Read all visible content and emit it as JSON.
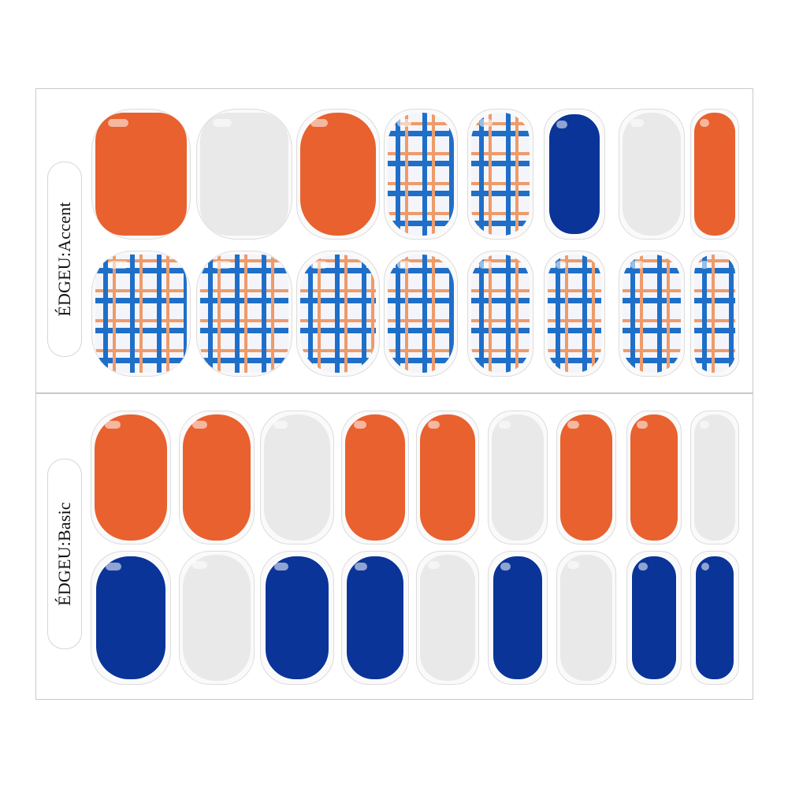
{
  "sheets": {
    "accent": {
      "label": "ÉDGEU:Accent"
    },
    "basic": {
      "label": "ÉDGEU:Basic"
    }
  },
  "colors": {
    "orange": "#e8612e",
    "white": "#e9e9ea",
    "navy": "#0b3499",
    "plaid_blue": "#1f6fc8",
    "plaid_orange": "#ee9b6a"
  },
  "nail_designs": {
    "accent_row1": [
      "orange",
      "white",
      "orange",
      "plaid",
      "plaid",
      "navy",
      "white",
      "orange"
    ],
    "accent_row2": [
      "plaid",
      "plaid",
      "plaid",
      "plaid",
      "plaid",
      "plaid",
      "plaid",
      "plaid"
    ],
    "basic_row1": [
      "orange",
      "orange",
      "white",
      "orange",
      "orange",
      "white",
      "orange",
      "orange",
      "white"
    ],
    "basic_row2": [
      "navy",
      "white",
      "navy",
      "navy",
      "white",
      "navy",
      "white",
      "navy",
      "navy"
    ]
  }
}
